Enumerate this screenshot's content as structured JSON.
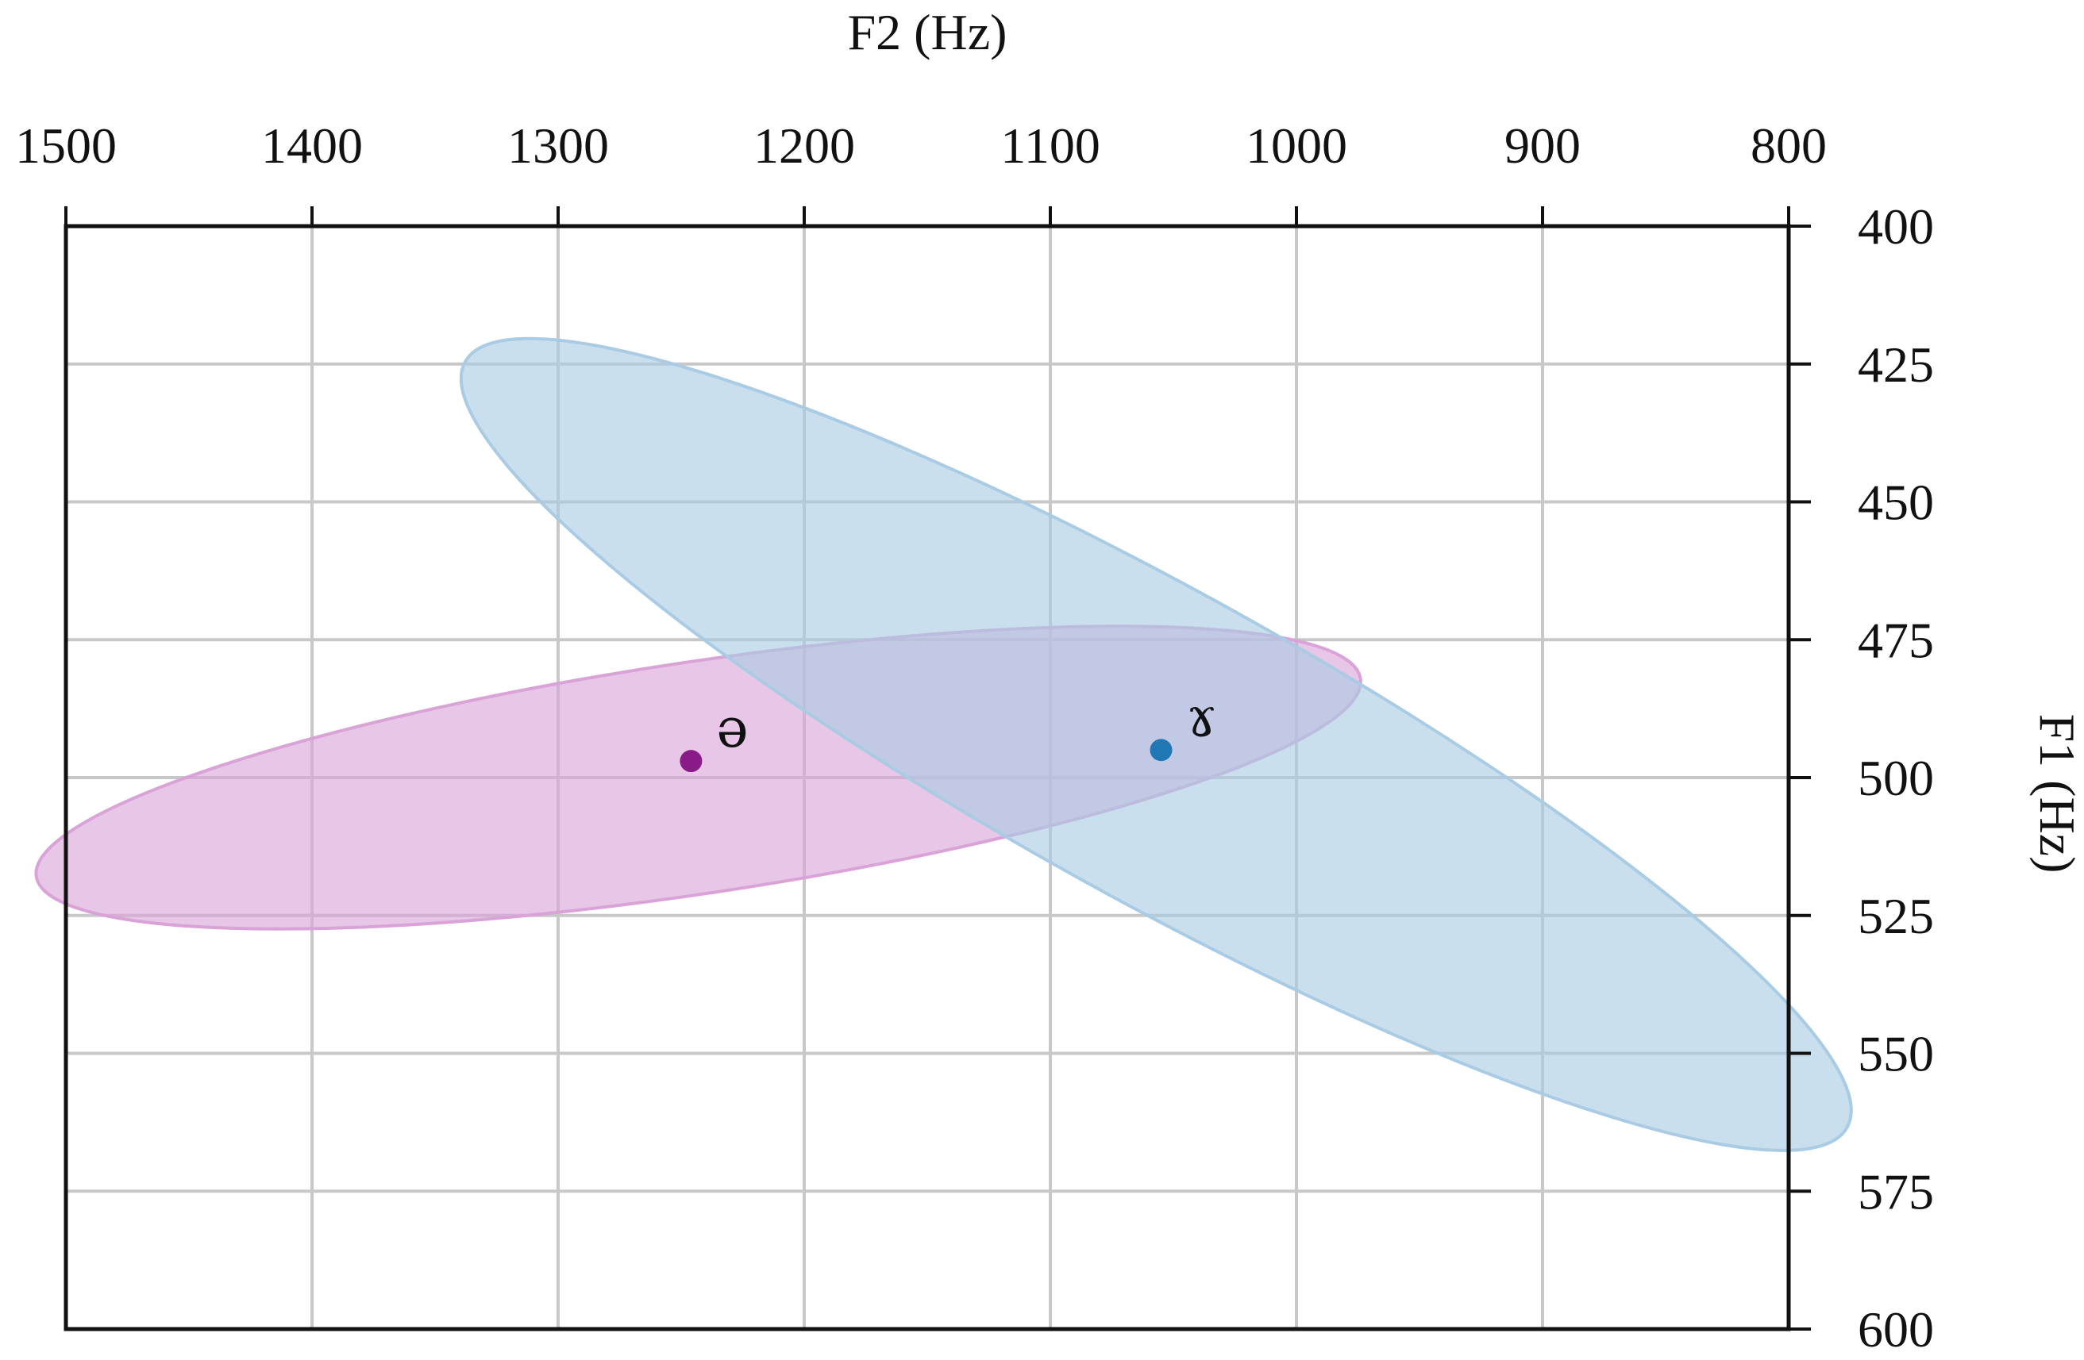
{
  "chart_data": {
    "type": "scatter",
    "title": "",
    "xlabel": "F2 (Hz)",
    "ylabel": "F1 (Hz)",
    "x_axis_position": "top",
    "y_axis_position": "right",
    "x_reversed": true,
    "y_reversed": true,
    "xlim": [
      1500,
      800
    ],
    "ylim": [
      400,
      600
    ],
    "xticks": [
      1500,
      1400,
      1300,
      1200,
      1100,
      1000,
      900,
      800
    ],
    "yticks": [
      400,
      425,
      450,
      475,
      500,
      525,
      550,
      575,
      600
    ],
    "grid": true,
    "series": [
      {
        "name": "ə",
        "color": "#8B1A89",
        "fill": "#D9A3D8",
        "mean": {
          "x": 1246,
          "y": 497
        },
        "ellipse": {
          "cx": 1243,
          "cy": 500,
          "rx": 272,
          "ry": 21,
          "angle_deg": -8.5
        }
      },
      {
        "name": "ɤ",
        "color": "#1F77B4",
        "fill": "#A9CBE4",
        "mean": {
          "x": 1055,
          "y": 495
        },
        "ellipse": {
          "cx": 1057,
          "cy": 494,
          "rx": 321,
          "ry": 28,
          "angle_deg": 29
        }
      }
    ]
  }
}
